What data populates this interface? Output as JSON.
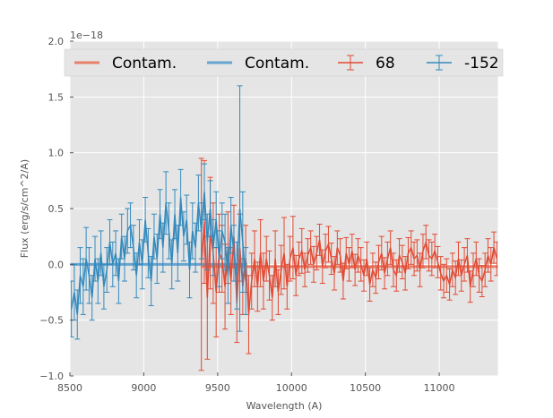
{
  "chart_data": {
    "type": "line",
    "title": "",
    "xlabel": "Wavelength (A)",
    "ylabel": "Flux (erg/s/cm^2/A)",
    "offset_label": "1e−18",
    "xlim": [
      8500,
      11400
    ],
    "ylim": [
      -1.0,
      2.0
    ],
    "xticks": [
      8500,
      9000,
      9500,
      10000,
      10500,
      11000
    ],
    "xtick_labels": [
      "8500",
      "9000",
      "9500",
      "10000",
      "10500",
      "11000"
    ],
    "yticks": [
      -1.0,
      -0.5,
      0.0,
      0.5,
      1.0,
      1.5,
      2.0
    ],
    "ytick_labels": [
      "−1.0",
      "−0.5",
      "0.0",
      "0.5",
      "1.0",
      "1.5",
      "2.0"
    ],
    "grid": true,
    "legend_position": "top",
    "legend": [
      {
        "label": "Contam.",
        "kind": "line",
        "color": "#E8806A"
      },
      {
        "label": "Contam.",
        "kind": "line",
        "color": "#67A4D0"
      },
      {
        "label": "68",
        "kind": "errorbar",
        "color": "#E24A33"
      },
      {
        "label": "-152",
        "kind": "errorbar",
        "color": "#348ABD"
      }
    ],
    "series": [
      {
        "name": "68",
        "color": "#E24A33",
        "x": [
          9390,
          9410,
          9430,
          9450,
          9470,
          9490,
          9510,
          9530,
          9550,
          9570,
          9590,
          9610,
          9630,
          9650,
          9670,
          9690,
          9710,
          9730,
          9750,
          9770,
          9790,
          9810,
          9830,
          9850,
          9870,
          9890,
          9910,
          9930,
          9950,
          9970,
          9990,
          10010,
          10030,
          10050,
          10070,
          10090,
          10110,
          10130,
          10150,
          10170,
          10190,
          10210,
          10230,
          10250,
          10270,
          10290,
          10310,
          10330,
          10350,
          10370,
          10390,
          10410,
          10430,
          10450,
          10470,
          10490,
          10510,
          10530,
          10550,
          10570,
          10590,
          10610,
          10630,
          10650,
          10670,
          10690,
          10710,
          10730,
          10750,
          10770,
          10790,
          10810,
          10830,
          10850,
          10870,
          10890,
          10910,
          10930,
          10950,
          10970,
          10990,
          11010,
          11030,
          11050,
          11070,
          11090,
          11110,
          11130,
          11150,
          11170,
          11190,
          11210,
          11230,
          11250,
          11270,
          11290,
          11310,
          11330,
          11350,
          11370,
          11390
        ],
        "y": [
          0.0,
          0.38,
          -0.3,
          0.28,
          0.1,
          -0.25,
          0.1,
          0.05,
          -0.2,
          0.15,
          -0.15,
          0.25,
          -0.35,
          0.15,
          -0.2,
          0.05,
          -0.45,
          -0.15,
          0.05,
          -0.2,
          0.1,
          -0.15,
          0.05,
          -0.1,
          -0.3,
          0.05,
          -0.25,
          -0.05,
          0.1,
          -0.2,
          0.05,
          0.15,
          -0.1,
          0.05,
          0.12,
          -0.05,
          0.08,
          0.15,
          0.0,
          0.1,
          0.22,
          -0.02,
          0.12,
          0.18,
          0.05,
          -0.08,
          0.15,
          0.08,
          -0.15,
          0.1,
          0.0,
          0.12,
          -0.05,
          0.08,
          0.0,
          -0.1,
          0.05,
          -0.18,
          -0.05,
          -0.12,
          0.02,
          0.1,
          -0.08,
          0.05,
          0.15,
          -0.05,
          -0.1,
          0.08,
          0.02,
          -0.08,
          0.1,
          0.15,
          0.05,
          0.08,
          -0.05,
          0.12,
          0.2,
          0.08,
          0.05,
          0.12,
          0.02,
          -0.08,
          -0.15,
          -0.1,
          -0.18,
          -0.05,
          -0.12,
          0.05,
          -0.1,
          0.0,
          0.08,
          -0.2,
          -0.05,
          0.05,
          -0.1,
          -0.15,
          -0.05,
          0.08,
          0.0,
          0.15,
          0.05
        ],
        "err": [
          0.95,
          0.55,
          0.55,
          0.5,
          0.45,
          0.4,
          0.35,
          0.3,
          0.38,
          0.32,
          0.3,
          0.28,
          0.35,
          0.3,
          0.25,
          0.3,
          0.35,
          0.25,
          0.25,
          0.22,
          0.3,
          0.25,
          0.2,
          0.22,
          0.2,
          0.25,
          0.2,
          0.22,
          0.32,
          0.2,
          0.2,
          0.28,
          0.18,
          0.15,
          0.2,
          0.15,
          0.15,
          0.15,
          0.16,
          0.15,
          0.14,
          0.15,
          0.15,
          0.16,
          0.14,
          0.15,
          0.15,
          0.15,
          0.16,
          0.14,
          0.15,
          0.15,
          0.14,
          0.15,
          0.15,
          0.14,
          0.15,
          0.15,
          0.15,
          0.14,
          0.15,
          0.15,
          0.14,
          0.15,
          0.15,
          0.15,
          0.14,
          0.15,
          0.15,
          0.15,
          0.14,
          0.15,
          0.15,
          0.14,
          0.15,
          0.15,
          0.15,
          0.14,
          0.15,
          0.15,
          0.14,
          0.15,
          0.15,
          0.15,
          0.14,
          0.15,
          0.15,
          0.15,
          0.14,
          0.15,
          0.15,
          0.14,
          0.15,
          0.15,
          0.15,
          0.14,
          0.15,
          0.15,
          0.15,
          0.14,
          0.15
        ]
      },
      {
        "name": "-152",
        "color": "#348ABD",
        "x": [
          8510,
          8530,
          8550,
          8570,
          8590,
          8610,
          8630,
          8650,
          8670,
          8690,
          8710,
          8730,
          8750,
          8770,
          8790,
          8810,
          8830,
          8850,
          8870,
          8890,
          8910,
          8930,
          8950,
          8970,
          8990,
          9010,
          9030,
          9050,
          9070,
          9090,
          9110,
          9130,
          9150,
          9170,
          9190,
          9210,
          9230,
          9250,
          9270,
          9290,
          9310,
          9330,
          9350,
          9370,
          9390,
          9410,
          9430,
          9450,
          9470,
          9490,
          9510,
          9530,
          9550,
          9570,
          9590,
          9610,
          9630,
          9650,
          9670,
          9690
        ],
        "y": [
          -0.4,
          -0.25,
          -0.45,
          -0.1,
          -0.2,
          0.05,
          -0.1,
          -0.3,
          0.05,
          -0.15,
          0.1,
          -0.2,
          -0.05,
          0.2,
          0.0,
          0.1,
          -0.15,
          0.25,
          0.05,
          0.3,
          0.35,
          0.15,
          -0.1,
          0.2,
          0.0,
          0.4,
          0.1,
          -0.15,
          0.25,
          0.05,
          0.45,
          0.15,
          0.55,
          0.3,
          0.0,
          0.45,
          0.1,
          0.6,
          0.25,
          0.4,
          -0.05,
          0.3,
          0.15,
          0.55,
          0.3,
          0.65,
          0.2,
          0.5,
          0.15,
          0.4,
          0.05,
          0.3,
          0.2,
          -0.1,
          0.35,
          0.1,
          -0.1,
          0.5,
          0.2,
          -0.15
        ],
        "err": [
          0.25,
          0.25,
          0.22,
          0.25,
          0.25,
          0.28,
          0.25,
          0.2,
          0.2,
          0.2,
          0.2,
          0.2,
          0.2,
          0.2,
          0.2,
          0.2,
          0.2,
          0.2,
          0.2,
          0.2,
          0.2,
          0.2,
          0.2,
          0.2,
          0.22,
          0.2,
          0.22,
          0.22,
          0.2,
          0.22,
          0.22,
          0.22,
          0.28,
          0.25,
          0.22,
          0.22,
          0.25,
          0.25,
          0.22,
          0.22,
          0.25,
          0.25,
          0.22,
          0.25,
          0.25,
          0.25,
          0.25,
          0.25,
          0.25,
          0.25,
          0.25,
          0.25,
          0.25,
          0.25,
          0.25,
          0.25,
          0.3,
          1.1,
          0.45,
          0.3
        ]
      }
    ],
    "contam": [
      {
        "label": "Contam.",
        "color": "#E8806A",
        "x": [
          9390,
          11400
        ],
        "y": [
          -0.02,
          -0.02
        ]
      },
      {
        "label": "Contam.",
        "color": "#67A4D0",
        "x": [
          8500,
          9700
        ],
        "y": [
          0.0,
          0.0
        ]
      }
    ]
  }
}
